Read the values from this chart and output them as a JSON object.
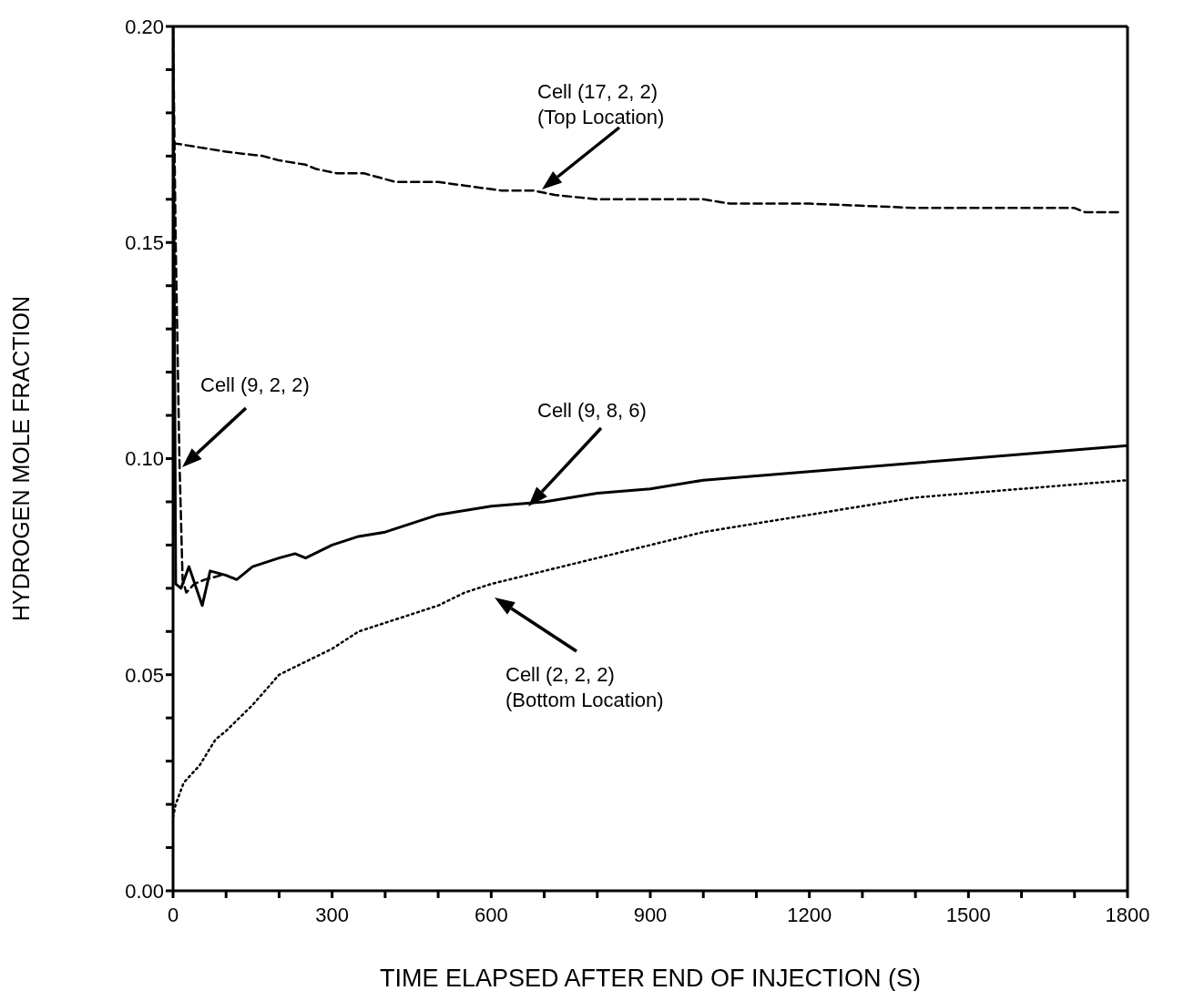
{
  "chart_data": {
    "type": "line",
    "xlabel": "TIME ELAPSED AFTER END OF INJECTION (S)",
    "ylabel": "HYDROGEN MOLE FRACTION",
    "xlim": [
      0,
      1800
    ],
    "ylim": [
      0,
      0.2
    ],
    "xticks": [
      0,
      {
        "value": 100,
        "label": null
      },
      {
        "value": 200,
        "label": null
      },
      300,
      {
        "value": 400,
        "label": null
      },
      {
        "value": 500,
        "label": null
      },
      600,
      {
        "value": 700,
        "label": null
      },
      {
        "value": 800,
        "label": null
      },
      900,
      {
        "value": 1000,
        "label": null
      },
      {
        "value": 1100,
        "label": null
      },
      1200,
      {
        "value": 1300,
        "label": null
      },
      {
        "value": 1400,
        "label": null
      },
      1500,
      {
        "value": 1600,
        "label": null
      },
      {
        "value": 1700,
        "label": null
      },
      1800
    ],
    "yticks": [
      {
        "value": 0,
        "label": "0.00"
      },
      {
        "value": 0.01,
        "label": null
      },
      {
        "value": 0.02,
        "label": null
      },
      {
        "value": 0.03,
        "label": null
      },
      {
        "value": 0.04,
        "label": null
      },
      0.05,
      {
        "value": 0.06,
        "label": null
      },
      {
        "value": 0.07,
        "label": null
      },
      {
        "value": 0.08,
        "label": null
      },
      {
        "value": 0.09,
        "label": null
      },
      {
        "value": 0.1,
        "label": "0.10"
      },
      {
        "value": 0.11,
        "label": null
      },
      {
        "value": 0.12,
        "label": null
      },
      {
        "value": 0.13,
        "label": null
      },
      {
        "value": 0.14,
        "label": null
      },
      0.15,
      {
        "value": 0.16,
        "label": null
      },
      {
        "value": 0.17,
        "label": null
      },
      {
        "value": 0.18,
        "label": null
      },
      {
        "value": 0.19,
        "label": null
      },
      {
        "value": 0.2,
        "label": "0.20"
      }
    ],
    "marker": "none",
    "series": [
      {
        "color": "#000000",
        "line_style": "dashed",
        "x": [
          0,
          100,
          170,
          200,
          250,
          270,
          310,
          360,
          390,
          420,
          500,
          560,
          620,
          680,
          720,
          800,
          900,
          1000,
          1050,
          1200,
          1400,
          1500,
          1700,
          1720,
          1790
        ],
        "values": [
          0.173,
          0.171,
          0.17,
          0.169,
          0.168,
          0.167,
          0.166,
          0.166,
          0.165,
          0.164,
          0.164,
          0.163,
          0.162,
          0.162,
          0.161,
          0.16,
          0.16,
          0.16,
          0.159,
          0.159,
          0.158,
          0.158,
          0.158,
          0.157,
          0.157
        ]
      },
      {
        "color": "#000000",
        "line_style": "dashed",
        "x": [
          0,
          5,
          12,
          18,
          25,
          40,
          60,
          90
        ],
        "values": [
          0.2,
          0.15,
          0.1,
          0.072,
          0.069,
          0.071,
          0.072,
          0.073
        ]
      },
      {
        "color": "#000000",
        "line_style": "solid",
        "x": [
          0,
          5,
          15,
          30,
          55,
          70,
          100,
          120,
          150,
          200,
          230,
          250,
          300,
          350,
          400,
          450,
          500,
          550,
          600,
          700,
          800,
          900,
          1000,
          1100,
          1200,
          1300,
          1400,
          1500,
          1600,
          1700,
          1800
        ],
        "values": [
          0.2,
          0.071,
          0.07,
          0.075,
          0.066,
          0.074,
          0.073,
          0.072,
          0.075,
          0.077,
          0.078,
          0.077,
          0.08,
          0.082,
          0.083,
          0.085,
          0.087,
          0.088,
          0.089,
          0.09,
          0.092,
          0.093,
          0.095,
          0.096,
          0.097,
          0.098,
          0.099,
          0.1,
          0.101,
          0.102,
          0.103
        ]
      },
      {
        "color": "#000000",
        "line_style": "dotted",
        "x": [
          0,
          5,
          20,
          50,
          80,
          100,
          150,
          200,
          250,
          300,
          350,
          400,
          450,
          500,
          550,
          600,
          700,
          800,
          900,
          1000,
          1100,
          1200,
          1300,
          1400,
          1500,
          1600,
          1700,
          1800
        ],
        "values": [
          0.017,
          0.02,
          0.025,
          0.029,
          0.035,
          0.037,
          0.043,
          0.05,
          0.053,
          0.056,
          0.06,
          0.062,
          0.064,
          0.066,
          0.069,
          0.071,
          0.074,
          0.077,
          0.08,
          0.083,
          0.085,
          0.087,
          0.089,
          0.091,
          0.092,
          0.093,
          0.094,
          0.095
        ]
      }
    ],
    "annotations": [
      "Cell (17, 2, 2)\n(Top Location)",
      "Cell (9, 2, 2)",
      "Cell (9, 8, 6)",
      "Cell (2, 2, 2)\n(Bottom Location)"
    ]
  }
}
